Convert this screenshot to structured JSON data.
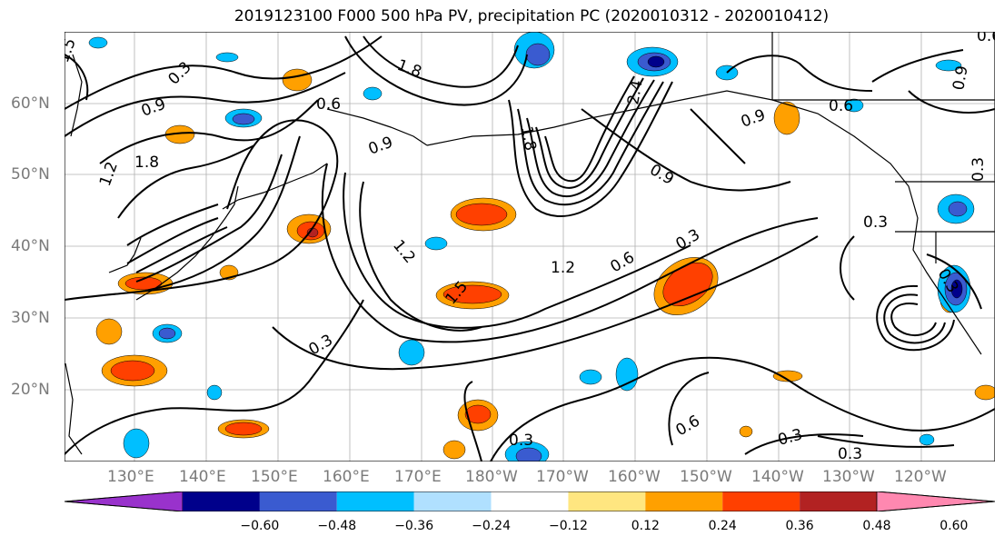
{
  "title": "2019123100 F000 500 hPa PV, precipitation PC (2020010312 - 2020010412)",
  "map": {
    "lat_ticks": [
      "60°N",
      "50°N",
      "40°N",
      "30°N",
      "20°N"
    ],
    "lon_ticks": [
      "130°E",
      "140°E",
      "150°E",
      "160°E",
      "170°E",
      "180°W",
      "170°W",
      "160°W",
      "150°W",
      "140°W",
      "130°W",
      "120°W"
    ],
    "contour_labels": [
      "1.5",
      "0.3",
      "1.8",
      "0.6",
      "0.9",
      "1.2",
      "0.3",
      "1.8",
      "1.5",
      "0.6",
      "0.9",
      "1.8",
      "0.9",
      "0.3",
      "0.6",
      "0.9",
      "2.4",
      "0.3",
      "1.2",
      "1.2",
      "0.6",
      "0.3",
      "0.9",
      "0.3",
      "0.3",
      "0.6",
      "0.3",
      "0.3"
    ],
    "colors": {
      "darkblue": "#00008b",
      "midblue": "#3a5bd0",
      "blue": "#00bfff",
      "lightblue": "#b0e0ff",
      "yellow": "#ffe680",
      "orange": "#ffa000",
      "redorange": "#ff4000",
      "darkred": "#b22222"
    }
  },
  "colorbar": {
    "ticks": [
      "−0.60",
      "−0.48",
      "−0.36",
      "−0.24",
      "−0.12",
      "0.12",
      "0.24",
      "0.36",
      "0.48",
      "0.60"
    ],
    "colors": [
      "#9932cc",
      "#00008b",
      "#3a5bd0",
      "#00bfff",
      "#b0e0ff",
      "#ffffff",
      "#ffe680",
      "#ffa000",
      "#ff4000",
      "#b22222",
      "#ff88b0"
    ]
  }
}
